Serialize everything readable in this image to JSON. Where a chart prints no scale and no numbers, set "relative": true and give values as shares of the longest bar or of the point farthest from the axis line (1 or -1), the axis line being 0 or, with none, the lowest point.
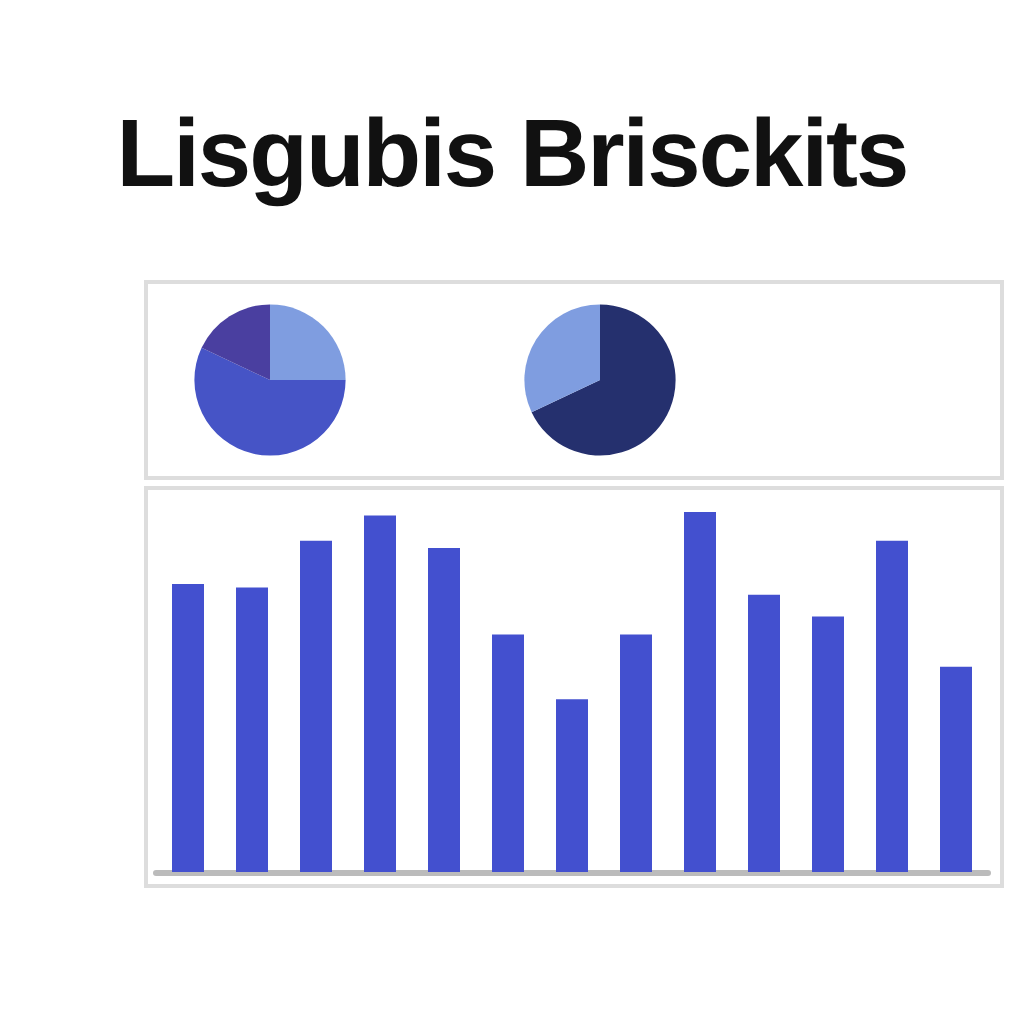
{
  "chart_data": [
    {
      "type": "pie",
      "title": "Lisgubis Brisckits",
      "categories": [
        null,
        null,
        null
      ],
      "values": [
        25,
        57,
        18
      ],
      "colors": [
        "#7f9de0",
        "#4654c6",
        "#4a3fa0"
      ]
    },
    {
      "type": "pie",
      "categories": [
        null,
        null
      ],
      "values": [
        68,
        32
      ],
      "colors": [
        "#25306e",
        "#7f9de0"
      ]
    },
    {
      "type": "bar",
      "relative": true,
      "categories": [
        null,
        null,
        null,
        null,
        null,
        null,
        null,
        null,
        null,
        null,
        null,
        null,
        null
      ],
      "values": [
        0.8,
        0.79,
        0.92,
        0.99,
        0.9,
        0.66,
        0.48,
        0.66,
        1,
        0.77,
        0.71,
        0.92,
        0.57
      ],
      "color": "#4350cf"
    }
  ]
}
